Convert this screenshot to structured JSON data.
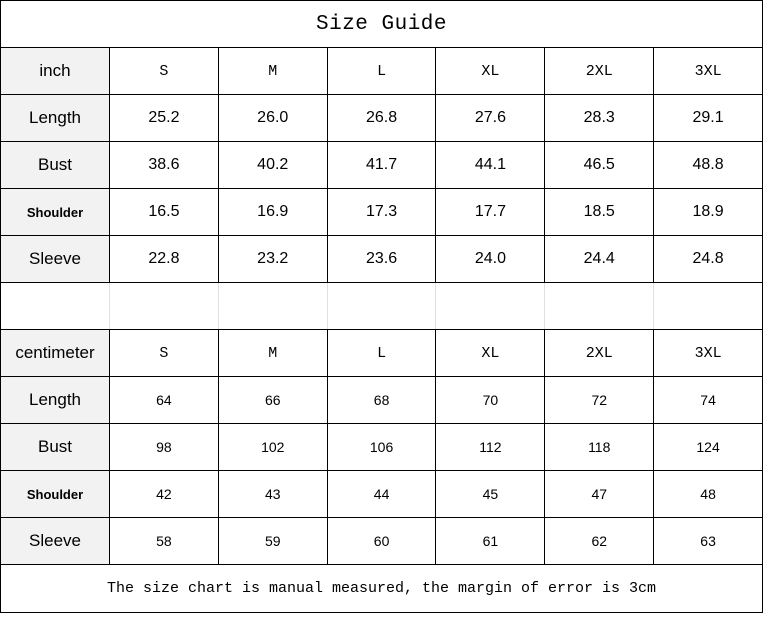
{
  "title": "Size Guide",
  "inch": {
    "unit": "inch",
    "sizes": [
      "S",
      "M",
      "L",
      "XL",
      "2XL",
      "3XL"
    ],
    "rows": [
      {
        "label": "Length",
        "bold": false,
        "values": [
          "25.2",
          "26.0",
          "26.8",
          "27.6",
          "28.3",
          "29.1"
        ]
      },
      {
        "label": "Bust",
        "bold": false,
        "values": [
          "38.6",
          "40.2",
          "41.7",
          "44.1",
          "46.5",
          "48.8"
        ]
      },
      {
        "label": "Shoulder",
        "bold": true,
        "values": [
          "16.5",
          "16.9",
          "17.3",
          "17.7",
          "18.5",
          "18.9"
        ]
      },
      {
        "label": "Sleeve",
        "bold": false,
        "values": [
          "22.8",
          "23.2",
          "23.6",
          "24.0",
          "24.4",
          "24.8"
        ]
      }
    ]
  },
  "centimeter": {
    "unit": "centimeter",
    "sizes": [
      "S",
      "M",
      "L",
      "XL",
      "2XL",
      "3XL"
    ],
    "rows": [
      {
        "label": "Length",
        "bold": false,
        "values": [
          "64",
          "66",
          "68",
          "70",
          "72",
          "74"
        ]
      },
      {
        "label": "Bust",
        "bold": false,
        "values": [
          "98",
          "102",
          "106",
          "112",
          "118",
          "124"
        ]
      },
      {
        "label": "Shoulder",
        "bold": true,
        "values": [
          "42",
          "43",
          "44",
          "45",
          "47",
          "48"
        ]
      },
      {
        "label": "Sleeve",
        "bold": false,
        "values": [
          "58",
          "59",
          "60",
          "61",
          "62",
          "63"
        ]
      }
    ]
  },
  "footer": "The size chart is manual measured, the margin of error is 3cm",
  "colors": {
    "label_bg": "#f2f2f2",
    "border": "#000000"
  }
}
